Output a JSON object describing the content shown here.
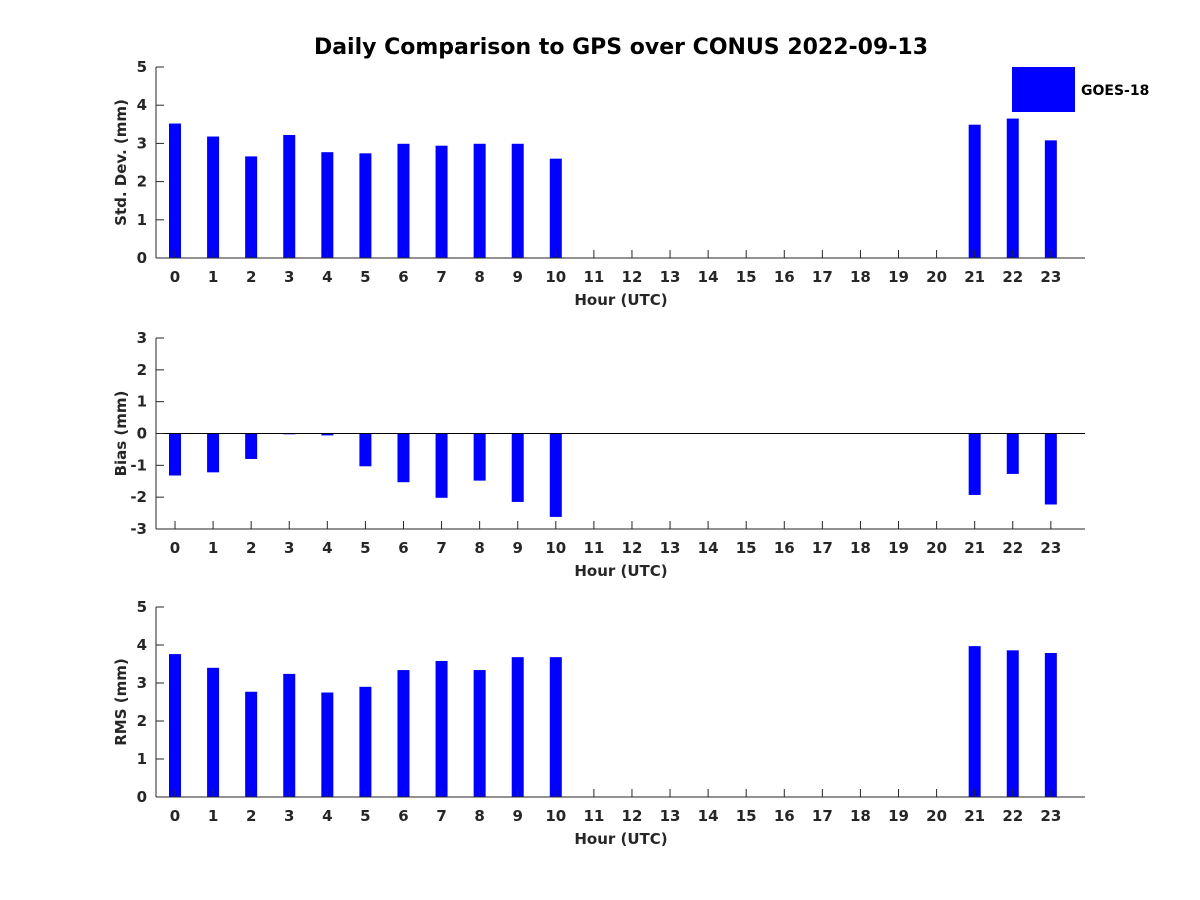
{
  "title": "Daily Comparison to GPS over CONUS 2022-09-13",
  "legend": {
    "label": "GOES-18",
    "color": "#0000ff",
    "position": "top-right"
  },
  "chart_data": [
    {
      "type": "bar",
      "series_name": "GOES-18",
      "xlabel": "Hour (UTC)",
      "ylabel": "Std. Dev. (mm)",
      "ylim": [
        0,
        5
      ],
      "yticks": [
        0,
        1,
        2,
        3,
        4,
        5
      ],
      "categories": [
        "0",
        "1",
        "2",
        "3",
        "4",
        "5",
        "6",
        "7",
        "8",
        "9",
        "10",
        "11",
        "12",
        "13",
        "14",
        "15",
        "16",
        "17",
        "18",
        "19",
        "20",
        "21",
        "22",
        "23"
      ],
      "values": [
        3.52,
        3.18,
        2.66,
        3.22,
        2.77,
        2.74,
        2.99,
        2.94,
        2.99,
        2.99,
        2.6,
        null,
        null,
        null,
        null,
        null,
        null,
        null,
        null,
        null,
        null,
        3.49,
        3.65,
        3.08
      ]
    },
    {
      "type": "bar",
      "series_name": "GOES-18",
      "xlabel": "Hour (UTC)",
      "ylabel": "Bias (mm)",
      "ylim": [
        -3,
        3
      ],
      "yticks": [
        -3,
        -2,
        -1,
        0,
        1,
        2,
        3
      ],
      "categories": [
        "0",
        "1",
        "2",
        "3",
        "4",
        "5",
        "6",
        "7",
        "8",
        "9",
        "10",
        "11",
        "12",
        "13",
        "14",
        "15",
        "16",
        "17",
        "18",
        "19",
        "20",
        "21",
        "22",
        "23"
      ],
      "values": [
        -1.32,
        -1.22,
        -0.8,
        -0.01,
        -0.06,
        -1.03,
        -1.53,
        -2.02,
        -1.48,
        -2.15,
        -2.62,
        null,
        null,
        null,
        null,
        null,
        null,
        null,
        null,
        null,
        null,
        -1.93,
        -1.27,
        -2.23
      ]
    },
    {
      "type": "bar",
      "series_name": "GOES-18",
      "xlabel": "Hour (UTC)",
      "ylabel": "RMS (mm)",
      "ylim": [
        0,
        5
      ],
      "yticks": [
        0,
        1,
        2,
        3,
        4,
        5
      ],
      "categories": [
        "0",
        "1",
        "2",
        "3",
        "4",
        "5",
        "6",
        "7",
        "8",
        "9",
        "10",
        "11",
        "12",
        "13",
        "14",
        "15",
        "16",
        "17",
        "18",
        "19",
        "20",
        "21",
        "22",
        "23"
      ],
      "values": [
        3.76,
        3.4,
        2.77,
        3.24,
        2.75,
        2.9,
        3.34,
        3.58,
        3.34,
        3.68,
        3.68,
        null,
        null,
        null,
        null,
        null,
        null,
        null,
        null,
        null,
        null,
        3.97,
        3.86,
        3.79
      ]
    }
  ]
}
